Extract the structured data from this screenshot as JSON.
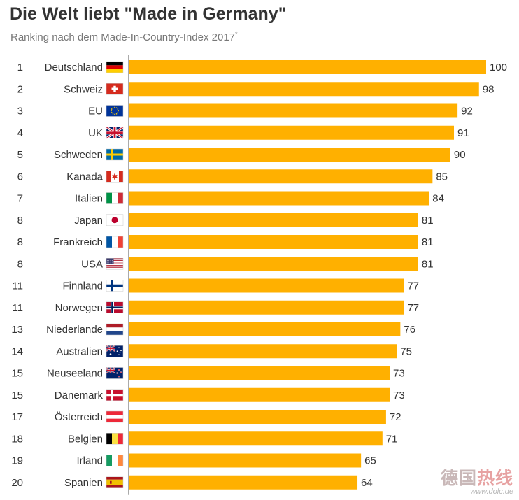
{
  "title": "Die Welt liebt \"Made in Germany\"",
  "subtitle": "Ranking nach dem Made-In-Country-Index 2017",
  "subtitle_mark": "*",
  "colors": {
    "bar": "#FFB000",
    "text": "#333333",
    "subtle": "#777777",
    "axis": "#aaaaaa"
  },
  "watermark": {
    "text_a": "德国",
    "text_b": "热线",
    "url": "www.dolc.de"
  },
  "chart_data": {
    "type": "bar",
    "orientation": "horizontal",
    "xlim": [
      0,
      100
    ],
    "grid": false,
    "legend": "none",
    "ranks": [
      1,
      2,
      3,
      4,
      5,
      6,
      7,
      8,
      8,
      8,
      11,
      11,
      13,
      14,
      15,
      15,
      17,
      18,
      19,
      20
    ],
    "categories": [
      "Deutschland",
      "Schweiz",
      "EU",
      "UK",
      "Schweden",
      "Kanada",
      "Italien",
      "Japan",
      "Frankreich",
      "USA",
      "Finnland",
      "Norwegen",
      "Niederlande",
      "Australien",
      "Neuseeland",
      "Dänemark",
      "Österreich",
      "Belgien",
      "Irland",
      "Spanien"
    ],
    "flags": [
      "flag-de-icon",
      "flag-ch-icon",
      "flag-eu-icon",
      "flag-uk-icon",
      "flag-se-icon",
      "flag-ca-icon",
      "flag-it-icon",
      "flag-jp-icon",
      "flag-fr-icon",
      "flag-us-icon",
      "flag-fi-icon",
      "flag-no-icon",
      "flag-nl-icon",
      "flag-au-icon",
      "flag-nz-icon",
      "flag-dk-icon",
      "flag-at-icon",
      "flag-be-icon",
      "flag-ie-icon",
      "flag-es-icon"
    ],
    "values": [
      100,
      98,
      92,
      91,
      90,
      85,
      84,
      81,
      81,
      81,
      77,
      77,
      76,
      75,
      73,
      73,
      72,
      71,
      65,
      64
    ]
  }
}
